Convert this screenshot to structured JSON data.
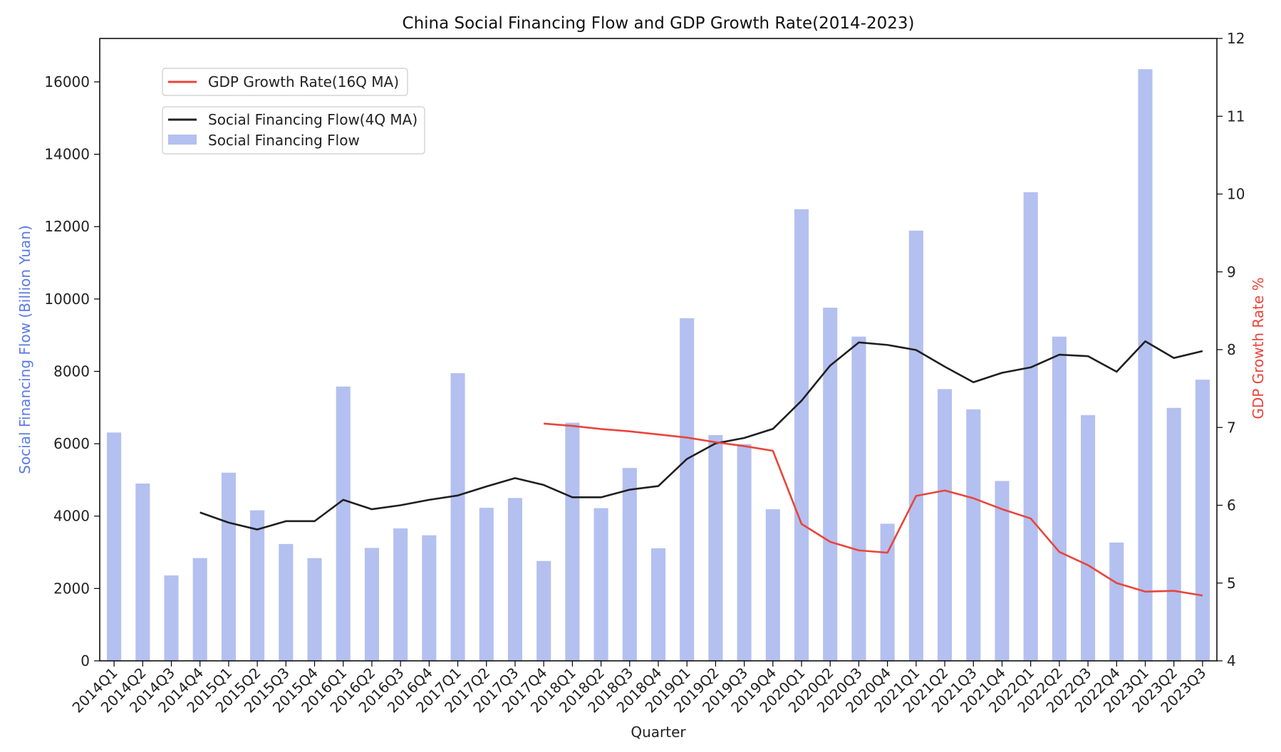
{
  "chart_data": {
    "type": "bar",
    "title": "China Social Financing Flow and GDP Growth Rate(2014-2023)",
    "xlabel": "Quarter",
    "ylabel_left": "Social Financing Flow (Billion Yuan)",
    "ylabel_right": "GDP Growth Rate %",
    "ylim_left": [
      0,
      17200
    ],
    "ylim_right": [
      4,
      12
    ],
    "yticks_left": [
      "0",
      "2000",
      "4000",
      "6000",
      "8000",
      "10000",
      "12000",
      "14000",
      "16000"
    ],
    "yticks_right": [
      "4",
      "5",
      "6",
      "7",
      "8",
      "9",
      "10",
      "11",
      "12"
    ],
    "grid": false,
    "legends": [
      {
        "placement": "upper-left",
        "entries": [
          "GDP Growth Rate(16Q MA)"
        ]
      },
      {
        "placement": "upper-left",
        "entries": [
          "Social Financing Flow(4Q MA)",
          "Social Financing Flow"
        ]
      }
    ],
    "categories": [
      "2014Q1",
      "2014Q2",
      "2014Q3",
      "2014Q4",
      "2015Q1",
      "2015Q2",
      "2015Q3",
      "2015Q4",
      "2016Q1",
      "2016Q2",
      "2016Q3",
      "2016Q4",
      "2017Q1",
      "2017Q2",
      "2017Q3",
      "2017Q4",
      "2018Q1",
      "2018Q2",
      "2018Q3",
      "2018Q4",
      "2019Q1",
      "2019Q2",
      "2019Q3",
      "2019Q4",
      "2020Q1",
      "2020Q2",
      "2020Q3",
      "2020Q4",
      "2021Q1",
      "2021Q2",
      "2021Q3",
      "2021Q4",
      "2022Q1",
      "2022Q2",
      "2022Q3",
      "2022Q4",
      "2023Q1",
      "2023Q2",
      "2023Q3"
    ],
    "series": [
      {
        "name": "Social Financing Flow",
        "type": "bar",
        "axis": "left",
        "color": "#b4c0ef",
        "values": [
          6310,
          4900,
          2360,
          2840,
          5200,
          4160,
          3230,
          2840,
          7580,
          3120,
          3660,
          3470,
          7950,
          4230,
          4500,
          2760,
          6580,
          4220,
          5330,
          3110,
          9470,
          6240,
          5990,
          4190,
          12480,
          9760,
          8960,
          3790,
          11890,
          7510,
          6950,
          4970,
          12950,
          8960,
          6790,
          3270,
          16350,
          6990,
          7770
        ]
      },
      {
        "name": "Social Financing Flow(4Q MA)",
        "type": "line",
        "axis": "left",
        "color": "#1f1f1f",
        "values": [
          null,
          null,
          null,
          4100,
          3820,
          3630,
          3860,
          3860,
          4450,
          4190,
          4300,
          4450,
          4570,
          4820,
          5050,
          4860,
          4520,
          4520,
          4730,
          4830,
          5580,
          6010,
          6160,
          6410,
          7190,
          8160,
          8800,
          8730,
          8590,
          8130,
          7700,
          7960,
          8110,
          8460,
          8420,
          7990,
          8830,
          8370,
          8560
        ]
      },
      {
        "name": "GDP Growth Rate(16Q MA)",
        "type": "line",
        "axis": "right",
        "color": "#e8453c",
        "values": [
          null,
          null,
          null,
          null,
          null,
          null,
          null,
          null,
          null,
          null,
          null,
          null,
          null,
          null,
          null,
          7.05,
          7.02,
          6.98,
          6.95,
          6.91,
          6.87,
          6.81,
          6.76,
          6.7,
          5.76,
          5.53,
          5.42,
          5.39,
          6.12,
          6.19,
          6.09,
          5.95,
          5.83,
          5.4,
          5.23,
          5.0,
          4.89,
          4.9,
          4.84
        ]
      }
    ]
  }
}
